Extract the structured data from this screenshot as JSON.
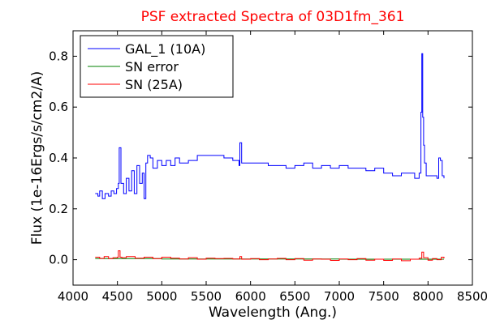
{
  "chart_data": {
    "type": "line",
    "title": "PSF extracted Spectra of 03D1fm_361",
    "xlabel": "Wavelength (Ang.)",
    "ylabel": "Flux (1e-16Ergs/s/cm2/A)",
    "xlim": [
      4000,
      8500
    ],
    "ylim": [
      -0.1,
      0.9
    ],
    "xticks": [
      "4000",
      "4500",
      "5000",
      "5500",
      "6000",
      "6500",
      "7000",
      "7500",
      "8000",
      "8500"
    ],
    "yticks": [
      "0.0",
      "0.2",
      "0.4",
      "0.6",
      "0.8"
    ],
    "grid": false,
    "legend_position": "top-left",
    "series": [
      {
        "name": "GAL_1 (10A)",
        "color": "#0000ff",
        "x": [
          4250,
          4280,
          4300,
          4330,
          4360,
          4400,
          4430,
          4460,
          4490,
          4510,
          4520,
          4540,
          4570,
          4600,
          4630,
          4660,
          4690,
          4720,
          4750,
          4780,
          4800,
          4820,
          4840,
          4870,
          4900,
          4950,
          5000,
          5050,
          5100,
          5150,
          5200,
          5300,
          5400,
          5500,
          5600,
          5700,
          5800,
          5870,
          5880,
          5900,
          6000,
          6100,
          6200,
          6300,
          6400,
          6500,
          6600,
          6700,
          6800,
          6900,
          7000,
          7100,
          7200,
          7300,
          7400,
          7500,
          7600,
          7700,
          7800,
          7850,
          7900,
          7920,
          7930,
          7940,
          7950,
          7960,
          7980,
          8000,
          8050,
          8100,
          8120,
          8140,
          8160,
          8180
        ],
        "y": [
          0.26,
          0.25,
          0.27,
          0.24,
          0.26,
          0.25,
          0.27,
          0.26,
          0.28,
          0.3,
          0.44,
          0.3,
          0.26,
          0.32,
          0.27,
          0.35,
          0.26,
          0.37,
          0.3,
          0.34,
          0.24,
          0.38,
          0.41,
          0.4,
          0.36,
          0.39,
          0.37,
          0.39,
          0.37,
          0.4,
          0.38,
          0.39,
          0.41,
          0.41,
          0.41,
          0.4,
          0.39,
          0.37,
          0.46,
          0.38,
          0.38,
          0.38,
          0.37,
          0.37,
          0.36,
          0.37,
          0.38,
          0.36,
          0.37,
          0.36,
          0.37,
          0.36,
          0.36,
          0.35,
          0.36,
          0.34,
          0.33,
          0.34,
          0.34,
          0.32,
          0.34,
          0.58,
          0.81,
          0.56,
          0.45,
          0.38,
          0.33,
          0.33,
          0.33,
          0.32,
          0.4,
          0.39,
          0.33,
          0.32
        ]
      },
      {
        "name": "SN error",
        "color": "#008000",
        "x": [
          4250,
          4500,
          5000,
          5500,
          6000,
          6500,
          7000,
          7500,
          8000,
          8180
        ],
        "y": [
          0.004,
          0.004,
          0.003,
          0.003,
          0.003,
          0.003,
          0.002,
          0.002,
          0.002,
          0.002
        ]
      },
      {
        "name": "SN (25A)",
        "color": "#ff0000",
        "x": [
          4250,
          4300,
          4350,
          4400,
          4450,
          4500,
          4510,
          4530,
          4550,
          4600,
          4700,
          4800,
          4900,
          5000,
          5100,
          5200,
          5300,
          5400,
          5500,
          5600,
          5700,
          5800,
          5880,
          5900,
          6000,
          6100,
          6200,
          6300,
          6400,
          6500,
          6600,
          6700,
          6800,
          6900,
          7000,
          7100,
          7200,
          7300,
          7400,
          7500,
          7600,
          7700,
          7800,
          7900,
          7930,
          7950,
          8000,
          8050,
          8100,
          8150,
          8180
        ],
        "y": [
          0.01,
          0.005,
          0.012,
          0.004,
          0.008,
          0.01,
          0.035,
          0.01,
          0.008,
          0.012,
          0.006,
          0.01,
          0.004,
          0.01,
          0.006,
          0.003,
          0.008,
          0.002,
          0.006,
          0.004,
          0.005,
          0.003,
          0.012,
          0.002,
          0.004,
          0.0,
          0.003,
          0.005,
          0.0,
          0.004,
          -0.002,
          0.003,
          0.002,
          -0.003,
          0.003,
          0.0,
          0.004,
          -0.002,
          0.002,
          -0.003,
          0.003,
          -0.004,
          0.002,
          0.006,
          0.03,
          0.008,
          -0.002,
          0.004,
          0.0,
          0.01,
          0.005
        ]
      }
    ]
  }
}
